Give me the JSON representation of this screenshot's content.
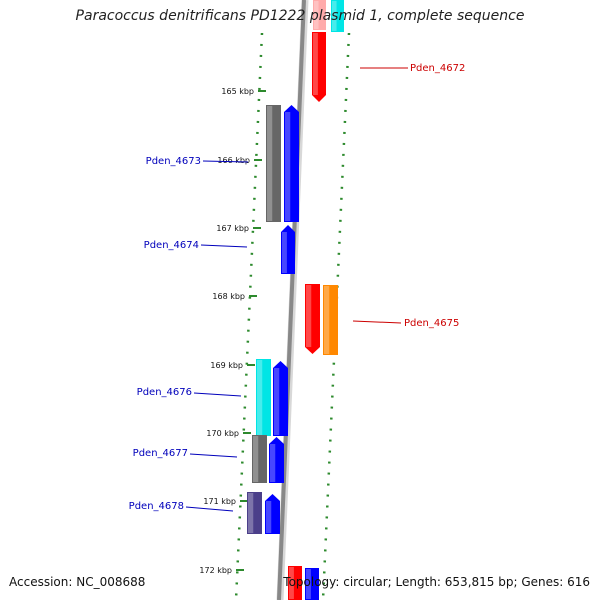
{
  "title": "Paracoccus denitrificans PD1222 plasmid 1, complete sequence",
  "footer": {
    "accession": "Accession: NC_008688",
    "summary": "Topology: circular; Length: 653,815 bp; Genes: 616"
  },
  "colors": {
    "backbone": "#888888",
    "tick": "#2d8a2d",
    "forward_label": "#0000bb",
    "reverse_label": "#cc0000",
    "blue": "#0000ff",
    "red": "#ff0000",
    "orange": "#ff8800",
    "cyan": "#00e5e5",
    "gray": "#666666",
    "slate": "#4b3f8a"
  },
  "scale_ticks": [
    {
      "kbp": 165,
      "label": "165 kbp"
    },
    {
      "kbp": 166,
      "label": "166 kbp"
    },
    {
      "kbp": 167,
      "label": "167 kbp"
    },
    {
      "kbp": 168,
      "label": "168 kbp"
    },
    {
      "kbp": 169,
      "label": "169 kbp"
    },
    {
      "kbp": 170,
      "label": "170 kbp"
    },
    {
      "kbp": 171,
      "label": "171 kbp"
    },
    {
      "kbp": 172,
      "label": "172 kbp"
    }
  ],
  "labeled_genes": [
    {
      "name": "Pden_4672",
      "strand": "reverse"
    },
    {
      "name": "Pden_4673",
      "strand": "forward"
    },
    {
      "name": "Pden_4674",
      "strand": "forward"
    },
    {
      "name": "Pden_4675",
      "strand": "reverse"
    },
    {
      "name": "Pden_4676",
      "strand": "forward"
    },
    {
      "name": "Pden_4677",
      "strand": "forward"
    },
    {
      "name": "Pden_4678",
      "strand": "forward"
    }
  ]
}
